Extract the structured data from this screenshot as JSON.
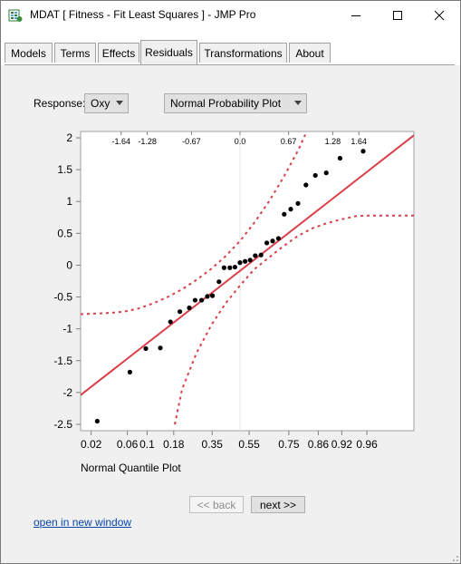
{
  "window": {
    "title": "MDAT [ Fitness - Fit Least Squares ] - JMP Pro",
    "app_icon": "jmp-app-icon",
    "controls": [
      "minimize-icon",
      "maximize-icon",
      "close-icon"
    ]
  },
  "tabs": [
    {
      "label": "Models",
      "active": false
    },
    {
      "label": "Terms",
      "active": false
    },
    {
      "label": "Effects",
      "active": false
    },
    {
      "label": "Residuals",
      "active": true
    },
    {
      "label": "Transformations",
      "active": false
    },
    {
      "label": "About",
      "active": false
    }
  ],
  "response": {
    "label": "Response:",
    "value": "Oxy"
  },
  "plot_type": {
    "value": "Normal Probability Plot"
  },
  "chart_data": {
    "type": "scatter",
    "ylim": [
      -2.6,
      2.1
    ],
    "yticks": [
      "2",
      "1.5",
      "1",
      "0.5",
      "0",
      "-0.5",
      "-1",
      "-1.5",
      "-2",
      "-2.5"
    ],
    "ytick_values": [
      2,
      1.5,
      1,
      0.5,
      0,
      -0.5,
      -1,
      -1.5,
      -2,
      -2.5
    ],
    "xlim": [
      -2.2,
      2.4
    ],
    "top_ticks": [
      "-1.64",
      "-1.28",
      "-0.67",
      "0.0",
      "0.67",
      "1.28",
      "1.64"
    ],
    "top_tick_values": [
      -1.64,
      -1.28,
      -0.67,
      0.0,
      0.67,
      1.28,
      1.64
    ],
    "bottom_ticks": [
      "0.02",
      "0.06",
      "0.1",
      "0.18",
      "0.35",
      "0.55",
      "0.75",
      "0.86",
      "0.92",
      "0.96"
    ],
    "bottom_tick_quantiles": [
      -2.054,
      -1.555,
      -1.282,
      -0.915,
      -0.385,
      0.126,
      0.674,
      1.08,
      1.405,
      1.751
    ],
    "xlabel": "Normal Quantile Plot",
    "points": [
      {
        "x": -1.97,
        "y": -2.45
      },
      {
        "x": -1.52,
        "y": -1.68
      },
      {
        "x": -1.3,
        "y": -1.31
      },
      {
        "x": -1.1,
        "y": -1.3
      },
      {
        "x": -0.96,
        "y": -0.89
      },
      {
        "x": -0.83,
        "y": -0.73
      },
      {
        "x": -0.7,
        "y": -0.67
      },
      {
        "x": -0.62,
        "y": -0.55
      },
      {
        "x": -0.53,
        "y": -0.55
      },
      {
        "x": -0.45,
        "y": -0.49
      },
      {
        "x": -0.38,
        "y": -0.48
      },
      {
        "x": -0.29,
        "y": -0.26
      },
      {
        "x": -0.22,
        "y": -0.04
      },
      {
        "x": -0.14,
        "y": -0.04
      },
      {
        "x": -0.07,
        "y": -0.03
      },
      {
        "x": 0.0,
        "y": 0.04
      },
      {
        "x": 0.07,
        "y": 0.06
      },
      {
        "x": 0.14,
        "y": 0.08
      },
      {
        "x": 0.21,
        "y": 0.15
      },
      {
        "x": 0.29,
        "y": 0.16
      },
      {
        "x": 0.37,
        "y": 0.35
      },
      {
        "x": 0.45,
        "y": 0.38
      },
      {
        "x": 0.53,
        "y": 0.42
      },
      {
        "x": 0.61,
        "y": 0.8
      },
      {
        "x": 0.7,
        "y": 0.88
      },
      {
        "x": 0.8,
        "y": 0.97
      },
      {
        "x": 0.91,
        "y": 1.26
      },
      {
        "x": 1.04,
        "y": 1.41
      },
      {
        "x": 1.19,
        "y": 1.45
      },
      {
        "x": 1.38,
        "y": 1.68
      },
      {
        "x": 1.7,
        "y": 1.79
      }
    ],
    "fit_line": {
      "x1": -2.2,
      "y1": -2.04,
      "x2": 2.4,
      "y2": 2.04
    },
    "band_upper": [
      [
        -2.2,
        -0.77
      ],
      [
        -1.8,
        -0.75
      ],
      [
        -1.6,
        -0.73
      ],
      [
        -1.4,
        -0.68
      ],
      [
        -1.2,
        -0.6
      ],
      [
        -1.0,
        -0.5
      ],
      [
        -0.8,
        -0.38
      ],
      [
        -0.6,
        -0.23
      ],
      [
        -0.4,
        -0.06
      ],
      [
        -0.2,
        0.14
      ],
      [
        0.0,
        0.38
      ],
      [
        0.2,
        0.67
      ],
      [
        0.4,
        1.0
      ],
      [
        0.6,
        1.38
      ],
      [
        0.8,
        1.8
      ],
      [
        0.9,
        2.05
      ]
    ],
    "band_lower": [
      [
        -0.9,
        -2.5
      ],
      [
        -0.8,
        -1.95
      ],
      [
        -0.6,
        -1.38
      ],
      [
        -0.4,
        -0.95
      ],
      [
        -0.2,
        -0.6
      ],
      [
        0.0,
        -0.32
      ],
      [
        0.2,
        -0.06
      ],
      [
        0.4,
        0.12
      ],
      [
        0.6,
        0.3
      ],
      [
        0.8,
        0.46
      ],
      [
        1.0,
        0.58
      ],
      [
        1.2,
        0.66
      ],
      [
        1.4,
        0.72
      ],
      [
        1.6,
        0.77
      ],
      [
        1.8,
        0.78
      ],
      [
        2.4,
        0.78
      ]
    ],
    "colors": {
      "fit": "#d9404a",
      "band": "#d9404a",
      "point": "#000000",
      "background": "#ffffff"
    }
  },
  "nav": {
    "back": "<< back",
    "next": "next >>"
  },
  "link": "open in new window"
}
